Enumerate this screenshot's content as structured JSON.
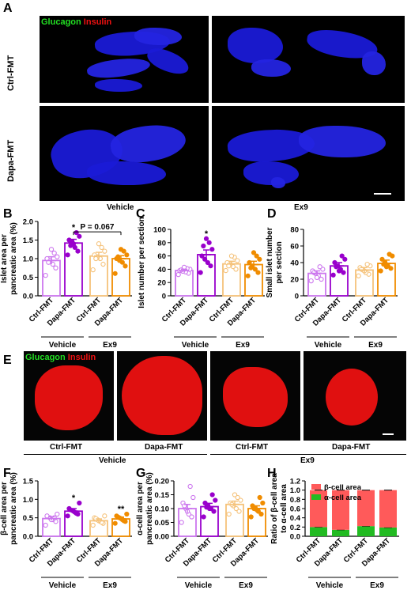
{
  "panel_labels": {
    "A": "A",
    "B": "B",
    "C": "C",
    "D": "D",
    "E": "E",
    "F": "F",
    "G": "G",
    "H": "H"
  },
  "panelA": {
    "stain_green": "Glucagon",
    "stain_red": "Insulin",
    "row1": "Ctrl-FMT",
    "row2": "Dapa-FMT",
    "col1": "Vehicle",
    "col2": "Ex9"
  },
  "panelE": {
    "stain_green": "Glucagon",
    "stain_red": "Insulin",
    "labels": [
      "Ctrl-FMT",
      "Dapa-FMT",
      "Ctrl-FMT",
      "Dapa-FMT"
    ],
    "group1": "Vehicle",
    "group2": "Ex9"
  },
  "colors": {
    "ctrl_vehicle": "#cc77ee",
    "dapa_vehicle": "#9900cc",
    "ctrl_ex9": "#f5c27a",
    "dapa_ex9": "#f08c00",
    "beta": "#ff5a5a",
    "alpha": "#22bb22"
  },
  "chart_data": [
    {
      "id": "B",
      "type": "bar",
      "ylabel": "Islet area per\npancreatic area (%)",
      "ylim": [
        0,
        2.0
      ],
      "yticks": [
        "0.0",
        "0.5",
        "1.0",
        "1.5",
        "2.0"
      ],
      "ytick_values": [
        0,
        0.5,
        1.0,
        1.5,
        2.0
      ],
      "categories": [
        "Ctrl-FMT",
        "Dapa-FMT",
        "Ctrl-FMT",
        "Dapa-FMT"
      ],
      "values": [
        0.95,
        1.42,
        1.07,
        1.0
      ],
      "errors": [
        0.1,
        0.1,
        0.1,
        0.08
      ],
      "stars": [
        "",
        "*",
        "",
        ""
      ],
      "annotation": "P = 0.067",
      "groups": [
        "Vehicle",
        "Ex9"
      ],
      "points": [
        [
          0.55,
          0.75,
          0.85,
          0.95,
          1.0,
          1.05,
          1.15,
          1.25,
          0.9
        ],
        [
          1.1,
          1.2,
          1.3,
          1.45,
          1.5,
          1.6,
          1.7,
          1.4,
          1.35
        ],
        [
          0.7,
          0.85,
          1.0,
          1.05,
          1.1,
          1.2,
          1.3,
          1.4,
          1.0
        ],
        [
          0.6,
          0.8,
          0.9,
          0.95,
          1.0,
          1.1,
          1.2,
          1.25,
          1.05
        ]
      ]
    },
    {
      "id": "C",
      "type": "bar",
      "ylabel": "Islet number per section",
      "ylim": [
        0,
        100
      ],
      "yticks": [
        "0",
        "20",
        "40",
        "60",
        "80",
        "100"
      ],
      "ytick_values": [
        0,
        20,
        40,
        60,
        80,
        100
      ],
      "categories": [
        "Ctrl-FMT",
        "Dapa-FMT",
        "Ctrl-FMT",
        "Dapa-FMT"
      ],
      "values": [
        38,
        62,
        48,
        47
      ],
      "errors": [
        2,
        7,
        4,
        5
      ],
      "stars": [
        "",
        "*",
        "",
        ""
      ],
      "groups": [
        "Vehicle",
        "Ex9"
      ],
      "points": [
        [
          32,
          34,
          36,
          37,
          38,
          40,
          41,
          43,
          39
        ],
        [
          35,
          45,
          50,
          55,
          60,
          70,
          80,
          86,
          75
        ],
        [
          38,
          40,
          44,
          47,
          50,
          53,
          58,
          60,
          45
        ],
        [
          30,
          35,
          40,
          45,
          50,
          55,
          60,
          65,
          42
        ]
      ]
    },
    {
      "id": "D",
      "type": "bar",
      "ylabel": "Small islet number\nper section",
      "ylim": [
        0,
        80
      ],
      "yticks": [
        "0",
        "20",
        "40",
        "60",
        "80"
      ],
      "ytick_values": [
        0,
        20,
        40,
        60,
        80
      ],
      "categories": [
        "Ctrl-FMT",
        "Dapa-FMT",
        "Ctrl-FMT",
        "Dapa-FMT"
      ],
      "values": [
        27,
        36,
        31,
        39
      ],
      "errors": [
        3,
        4,
        3,
        4
      ],
      "stars": [
        "",
        "",
        "",
        ""
      ],
      "groups": [
        "Vehicle",
        "Ex9"
      ],
      "points": [
        [
          18,
          20,
          24,
          27,
          30,
          32,
          35,
          22,
          28
        ],
        [
          25,
          28,
          32,
          36,
          40,
          44,
          48,
          30,
          35
        ],
        [
          24,
          26,
          28,
          31,
          34,
          36,
          38,
          30,
          32
        ],
        [
          30,
          33,
          36,
          40,
          44,
          48,
          50,
          35,
          38
        ]
      ]
    },
    {
      "id": "F",
      "type": "bar",
      "ylabel": "β-cell area per\npancreatic area (%)",
      "ylim": [
        0,
        1.5
      ],
      "yticks": [
        "0.0",
        "0.5",
        "1.0",
        "1.5"
      ],
      "ytick_values": [
        0,
        0.5,
        1.0,
        1.5
      ],
      "categories": [
        "Ctrl-FMT",
        "Dapa-FMT",
        "Ctrl-FMT",
        "Dapa-FMT"
      ],
      "values": [
        0.48,
        0.68,
        0.42,
        0.47
      ],
      "errors": [
        0.05,
        0.07,
        0.05,
        0.05
      ],
      "stars": [
        "",
        "*",
        "",
        "**"
      ],
      "groups": [
        "Vehicle",
        "Ex9"
      ],
      "points": [
        [
          0.3,
          0.4,
          0.45,
          0.5,
          0.55,
          0.6,
          0.5,
          0.45
        ],
        [
          0.55,
          0.6,
          0.65,
          0.7,
          0.75,
          0.9,
          0.62,
          0.68
        ],
        [
          0.3,
          0.35,
          0.4,
          0.45,
          0.5,
          0.55,
          0.38,
          0.42,
          0.48
        ],
        [
          0.35,
          0.4,
          0.45,
          0.5,
          0.55,
          0.6,
          0.42,
          0.48,
          0.52
        ]
      ]
    },
    {
      "id": "G",
      "type": "bar",
      "ylabel": "α-cell area per\npancreatic area (%)",
      "ylim": [
        0,
        0.2
      ],
      "yticks": [
        "0.00",
        "0.05",
        "0.10",
        "0.15",
        "0.20"
      ],
      "ytick_values": [
        0,
        0.05,
        0.1,
        0.15,
        0.2
      ],
      "categories": [
        "Ctrl-FMT",
        "Dapa-FMT",
        "Ctrl-FMT",
        "Dapa-FMT"
      ],
      "values": [
        0.1,
        0.107,
        0.115,
        0.1
      ],
      "errors": [
        0.015,
        0.012,
        0.012,
        0.01
      ],
      "stars": [
        "",
        "",
        "",
        ""
      ],
      "groups": [
        "Vehicle",
        "Ex9"
      ],
      "points": [
        [
          0.05,
          0.07,
          0.08,
          0.1,
          0.12,
          0.14,
          0.18,
          0.09,
          0.11
        ],
        [
          0.07,
          0.09,
          0.1,
          0.11,
          0.12,
          0.13,
          0.15,
          0.1,
          0.105
        ],
        [
          0.08,
          0.09,
          0.1,
          0.11,
          0.12,
          0.13,
          0.14,
          0.15,
          0.115
        ],
        [
          0.07,
          0.08,
          0.09,
          0.1,
          0.11,
          0.12,
          0.14,
          0.095,
          0.1
        ]
      ]
    },
    {
      "id": "H",
      "type": "stacked-bar",
      "ylabel": "Ratio of β-cell area\nto α-cell area",
      "ylim": [
        0,
        1.2
      ],
      "yticks": [
        "0.0",
        "0.2",
        "0.4",
        "0.6",
        "0.8",
        "1.0",
        "1.2"
      ],
      "ytick_values": [
        0,
        0.2,
        0.4,
        0.6,
        0.8,
        1.0,
        1.2
      ],
      "categories": [
        "Ctrl-FMT",
        "Dapa-FMT",
        "Ctrl-FMT",
        "Dapa-FMT"
      ],
      "groups": [
        "Vehicle",
        "Ex9"
      ],
      "series": [
        {
          "name": "α-cell area",
          "values": [
            0.2,
            0.14,
            0.22,
            0.19
          ]
        },
        {
          "name": "β-cell area",
          "values": [
            0.8,
            0.86,
            0.78,
            0.81
          ]
        }
      ],
      "legend": "top-right"
    }
  ]
}
